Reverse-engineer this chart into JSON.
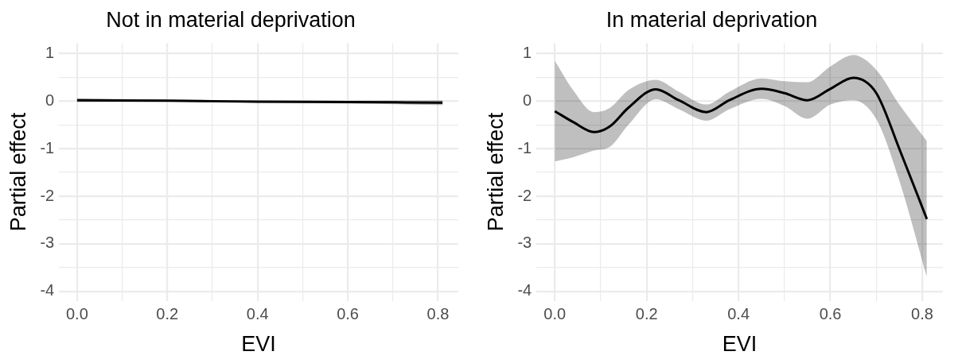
{
  "chart_data": [
    {
      "type": "line",
      "title": "Not in material deprivation",
      "xlabel": "EVI",
      "ylabel": "Partial effect",
      "x": [
        0,
        0.2,
        0.4,
        0.6,
        0.81
      ],
      "series": [
        {
          "color": "#000000",
          "values": [
            0.02,
            0.01,
            -0.01,
            -0.02,
            -0.03
          ],
          "lower": [
            -0.02,
            -0.01,
            -0.03,
            -0.05,
            -0.08
          ],
          "upper": [
            0.06,
            0.03,
            0.01,
            0.01,
            0.02
          ]
        }
      ],
      "xlim": [
        -0.04,
        0.845
      ],
      "ylim": [
        -4.2,
        1.22
      ],
      "xticks": [
        {
          "value": 0,
          "label": "0.0"
        },
        {
          "value": 0.1,
          "label": null
        },
        0.2,
        {
          "value": 0.3,
          "label": null
        },
        0.4,
        {
          "value": 0.5,
          "label": null
        },
        0.6,
        {
          "value": 0.7,
          "label": null
        },
        0.8
      ],
      "yticks": [
        -4,
        {
          "value": -3.5,
          "label": null
        },
        -3,
        {
          "value": -2.5,
          "label": null
        },
        -2,
        {
          "value": -1.5,
          "label": null
        },
        -1,
        {
          "value": -0.5,
          "label": null
        },
        0,
        {
          "value": 0.5,
          "label": null
        },
        1
      ],
      "grid": true,
      "legend": false
    },
    {
      "type": "line",
      "title": "In material deprivation",
      "xlabel": "EVI",
      "ylabel": "Partial effect",
      "x": [
        0,
        0.04,
        0.085,
        0.12,
        0.16,
        0.22,
        0.27,
        0.33,
        0.38,
        0.45,
        0.5,
        0.55,
        0.6,
        0.65,
        0.7,
        0.75,
        0.81
      ],
      "series": [
        {
          "color": "#000000",
          "values": [
            -0.21,
            -0.44,
            -0.65,
            -0.53,
            -0.14,
            0.25,
            0.02,
            -0.23,
            0.02,
            0.26,
            0.17,
            0.02,
            0.26,
            0.49,
            0.17,
            -1.0,
            -2.48
          ],
          "lower": [
            -1.27,
            -1.18,
            -1.04,
            -0.96,
            -0.5,
            0.04,
            -0.17,
            -0.41,
            -0.17,
            0.05,
            -0.1,
            -0.37,
            -0.07,
            0.02,
            -0.38,
            -1.67,
            -3.7
          ],
          "upper": [
            0.85,
            0.23,
            -0.23,
            -0.14,
            0.23,
            0.45,
            0.2,
            -0.07,
            0.2,
            0.48,
            0.42,
            0.4,
            0.73,
            0.97,
            0.66,
            -0.07,
            -0.84
          ]
        }
      ],
      "xlim": [
        -0.04,
        0.845
      ],
      "ylim": [
        -4.2,
        1.22
      ],
      "xticks": [
        {
          "value": 0,
          "label": "0.0"
        },
        {
          "value": 0.1,
          "label": null
        },
        0.2,
        {
          "value": 0.3,
          "label": null
        },
        0.4,
        {
          "value": 0.5,
          "label": null
        },
        0.6,
        {
          "value": 0.7,
          "label": null
        },
        0.8
      ],
      "yticks": [
        -4,
        {
          "value": -3.5,
          "label": null
        },
        -3,
        {
          "value": -2.5,
          "label": null
        },
        -2,
        {
          "value": -1.5,
          "label": null
        },
        -1,
        {
          "value": -0.5,
          "label": null
        },
        0,
        {
          "value": 0.5,
          "label": null
        },
        1
      ],
      "grid": true,
      "legend": false
    }
  ]
}
